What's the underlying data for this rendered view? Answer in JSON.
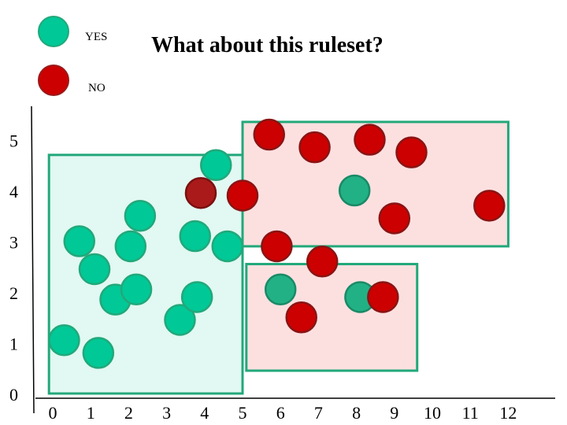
{
  "chart_data": {
    "type": "scatter",
    "title": "What about this ruleset?",
    "xlabel": "",
    "ylabel": "",
    "x_ticks": [
      "0",
      "1",
      "2",
      "3",
      "4",
      "5",
      "6",
      "7",
      "8",
      "9",
      "10",
      "11",
      "12"
    ],
    "y_ticks": [
      "0",
      "1",
      "2",
      "3",
      "4",
      "5"
    ],
    "xlim": [
      0,
      12
    ],
    "ylim": [
      0,
      5.5
    ],
    "grid": false,
    "legend_position": "top-left",
    "colors": {
      "yes": "#00c896",
      "yes_dark": "#22b185",
      "no": "#cc0000",
      "no_dark": "#aa1a1a",
      "yes_region_fill": "#e2f8f2",
      "yes_region_stroke": "#22a87a",
      "no_region_fill": "#fce0e0"
    },
    "legend": [
      {
        "label": "YES",
        "class": "yes"
      },
      {
        "label": "NO",
        "class": "no"
      }
    ],
    "regions": [
      {
        "class": "yes",
        "x0": -0.1,
        "x1": 5.0,
        "y0": 0.0,
        "y1": 4.7
      },
      {
        "class": "no",
        "x0": 5.0,
        "x1": 12.0,
        "y0": 2.9,
        "y1": 5.35
      },
      {
        "class": "no",
        "x0": 5.1,
        "x1": 9.6,
        "y0": 0.45,
        "y1": 2.55
      }
    ],
    "series": [
      {
        "name": "YES",
        "points": [
          {
            "x": 0.3,
            "y": 1.05,
            "shade": "yes"
          },
          {
            "x": 1.2,
            "y": 0.8,
            "shade": "yes"
          },
          {
            "x": 0.7,
            "y": 3.0,
            "shade": "yes"
          },
          {
            "x": 1.1,
            "y": 2.45,
            "shade": "yes"
          },
          {
            "x": 1.65,
            "y": 1.85,
            "shade": "yes"
          },
          {
            "x": 2.2,
            "y": 2.05,
            "shade": "yes"
          },
          {
            "x": 2.05,
            "y": 2.9,
            "shade": "yes"
          },
          {
            "x": 2.3,
            "y": 3.5,
            "shade": "yes"
          },
          {
            "x": 3.35,
            "y": 1.45,
            "shade": "yes"
          },
          {
            "x": 3.8,
            "y": 1.9,
            "shade": "yes"
          },
          {
            "x": 3.75,
            "y": 3.1,
            "shade": "yes"
          },
          {
            "x": 4.3,
            "y": 4.5,
            "shade": "yes"
          },
          {
            "x": 4.6,
            "y": 2.9,
            "shade": "yes"
          },
          {
            "x": 6.0,
            "y": 2.05,
            "shade": "yes_dark"
          },
          {
            "x": 8.1,
            "y": 1.9,
            "shade": "yes_dark"
          },
          {
            "x": 7.95,
            "y": 4.0,
            "shade": "yes_dark"
          }
        ]
      },
      {
        "name": "NO",
        "points": [
          {
            "x": 5.7,
            "y": 5.1,
            "shade": "no"
          },
          {
            "x": 6.9,
            "y": 4.85,
            "shade": "no"
          },
          {
            "x": 8.35,
            "y": 5.0,
            "shade": "no"
          },
          {
            "x": 9.45,
            "y": 4.75,
            "shade": "no"
          },
          {
            "x": 5.0,
            "y": 3.9,
            "shade": "no"
          },
          {
            "x": 11.5,
            "y": 3.7,
            "shade": "no"
          },
          {
            "x": 9.0,
            "y": 3.45,
            "shade": "no"
          },
          {
            "x": 5.9,
            "y": 2.9,
            "shade": "no"
          },
          {
            "x": 7.1,
            "y": 2.6,
            "shade": "no"
          },
          {
            "x": 8.7,
            "y": 1.9,
            "shade": "no"
          },
          {
            "x": 6.55,
            "y": 1.5,
            "shade": "no"
          },
          {
            "x": 3.9,
            "y": 3.95,
            "shade": "no_dark"
          }
        ]
      }
    ]
  }
}
